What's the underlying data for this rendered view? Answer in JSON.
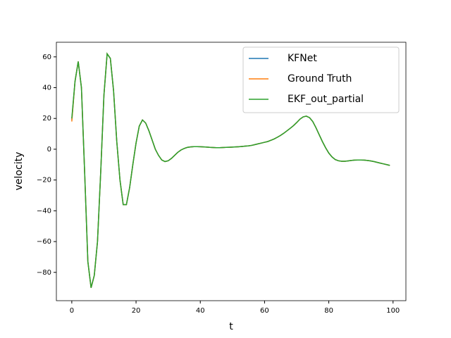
{
  "chart_data": {
    "type": "line",
    "xlabel": "t",
    "ylabel": "velocity",
    "x": [
      0,
      1,
      2,
      3,
      4,
      5,
      6,
      7,
      8,
      9,
      10,
      11,
      12,
      13,
      14,
      15,
      16,
      17,
      18,
      19,
      20,
      21,
      22,
      23,
      24,
      25,
      26,
      27,
      28,
      29,
      30,
      31,
      32,
      33,
      34,
      35,
      36,
      37,
      38,
      39,
      40,
      41,
      42,
      43,
      44,
      45,
      46,
      47,
      48,
      49,
      50,
      51,
      52,
      53,
      54,
      55,
      56,
      57,
      58,
      59,
      60,
      61,
      62,
      63,
      64,
      65,
      66,
      67,
      68,
      69,
      70,
      71,
      72,
      73,
      74,
      75,
      76,
      77,
      78,
      79,
      80,
      81,
      82,
      83,
      84,
      85,
      86,
      87,
      88,
      89,
      90,
      91,
      92,
      93,
      94,
      95,
      96,
      97,
      98,
      99
    ],
    "series": [
      {
        "name": "KFNet",
        "color": "#1f77b4",
        "values": [
          19,
          44,
          57,
          40,
          -15,
          -73,
          -90,
          -82,
          -60,
          -15,
          35,
          62,
          59,
          38,
          5,
          -20,
          -36,
          -36,
          -25,
          -10,
          4,
          15,
          19,
          17,
          12,
          6,
          0,
          -4,
          -7,
          -8,
          -7.5,
          -6,
          -4,
          -2,
          -0.5,
          0.5,
          1.2,
          1.5,
          1.7,
          1.7,
          1.6,
          1.5,
          1.4,
          1.2,
          1.1,
          1,
          1,
          1.1,
          1.2,
          1.3,
          1.4,
          1.5,
          1.6,
          1.8,
          2,
          2.2,
          2.5,
          3,
          3.5,
          4,
          4.5,
          5,
          5.8,
          6.7,
          7.8,
          9,
          10.4,
          12,
          13.6,
          15.3,
          17.3,
          19.5,
          21,
          21.5,
          20.5,
          18,
          14,
          9.5,
          5,
          1,
          -2.5,
          -5,
          -6.7,
          -7.5,
          -7.8,
          -7.8,
          -7.6,
          -7.3,
          -7.1,
          -7,
          -7,
          -7.1,
          -7.3,
          -7.6,
          -8,
          -8.5,
          -9,
          -9.5,
          -10,
          -10.5
        ]
      },
      {
        "name": "Ground Truth",
        "color": "#ff7f0e",
        "values": [
          18,
          44,
          57,
          40,
          -15,
          -73,
          -90,
          -82,
          -60,
          -15,
          35,
          62,
          59,
          38,
          5,
          -20,
          -36,
          -36,
          -25,
          -10,
          4,
          15,
          19,
          17,
          12,
          6,
          0,
          -4,
          -7,
          -8,
          -7.5,
          -6,
          -4,
          -2,
          -0.5,
          0.5,
          1.2,
          1.5,
          1.7,
          1.7,
          1.6,
          1.5,
          1.4,
          1.2,
          1.1,
          1,
          1,
          1.1,
          1.2,
          1.3,
          1.4,
          1.5,
          1.6,
          1.8,
          2,
          2.2,
          2.5,
          3,
          3.5,
          4,
          4.5,
          5,
          5.8,
          6.7,
          7.8,
          9,
          10.4,
          12,
          13.6,
          15.3,
          17.3,
          19.5,
          21,
          21.5,
          20.5,
          18,
          14,
          9.5,
          5,
          1,
          -2.5,
          -5,
          -6.7,
          -7.5,
          -7.8,
          -7.8,
          -7.6,
          -7.3,
          -7.1,
          -7,
          -7,
          -7.1,
          -7.3,
          -7.6,
          -8,
          -8.5,
          -9,
          -9.5,
          -10,
          -10.5
        ]
      },
      {
        "name": "EKF_out_partial",
        "color": "#2ca02c",
        "values": [
          20,
          44,
          57,
          40,
          -15,
          -73,
          -90,
          -82,
          -60,
          -15,
          35,
          62,
          59,
          38,
          5,
          -20,
          -36,
          -36,
          -25,
          -10,
          4,
          15,
          19,
          17,
          12,
          6,
          0,
          -4,
          -7,
          -8,
          -7.5,
          -6,
          -4,
          -2,
          -0.5,
          0.5,
          1.2,
          1.5,
          1.7,
          1.7,
          1.6,
          1.5,
          1.4,
          1.2,
          1.1,
          1,
          1,
          1.1,
          1.2,
          1.3,
          1.4,
          1.5,
          1.6,
          1.8,
          2,
          2.2,
          2.5,
          3,
          3.5,
          4,
          4.5,
          5,
          5.8,
          6.7,
          7.8,
          9,
          10.4,
          12,
          13.6,
          15.3,
          17.3,
          19.5,
          21,
          21.5,
          20.5,
          18,
          14,
          9.5,
          5,
          1,
          -2.5,
          -5,
          -6.7,
          -7.5,
          -7.8,
          -7.8,
          -7.6,
          -7.3,
          -7.1,
          -7,
          -7,
          -7.1,
          -7.3,
          -7.6,
          -8,
          -8.5,
          -9,
          -9.5,
          -10,
          -10.5
        ]
      }
    ],
    "xlim": [
      -4.8,
      104
    ],
    "xticks": [
      0,
      20,
      40,
      60,
      80,
      100
    ],
    "ylim": [
      -98.4,
      69.5
    ],
    "yticks": [
      {
        "value": -80,
        "label": "−80"
      },
      {
        "value": -60,
        "label": "−60"
      },
      {
        "value": -40,
        "label": "−40"
      },
      {
        "value": -20,
        "label": "−20"
      },
      0,
      20,
      40,
      60
    ],
    "legend": "upper right"
  }
}
